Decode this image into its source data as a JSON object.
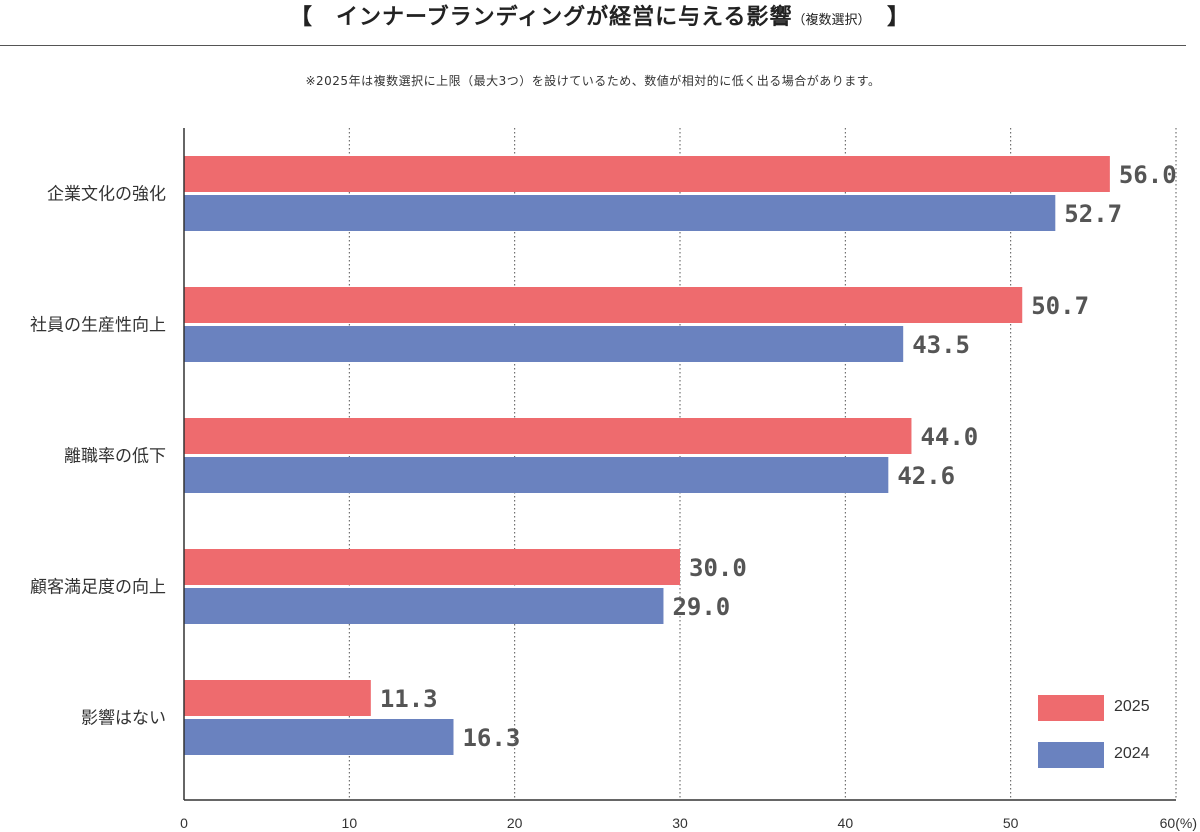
{
  "header": {
    "title_main": "【　インナーブランディングが経営に与える影響",
    "title_sub": "（複数選択）",
    "title_close": "　】",
    "note": "※2025年は複数選択に上限（最大3つ）を設けているため、数値が相対的に低く出る場合があります。"
  },
  "chart_data": {
    "type": "bar",
    "orientation": "horizontal",
    "title": "インナーブランディングが経営に与える影響（複数選択）",
    "categories": [
      "企業文化の強化",
      "社員の生産性向上",
      "離職率の低下",
      "顧客満足度の向上",
      "影響はない"
    ],
    "series": [
      {
        "name": "2025",
        "color": "#ee6b6e",
        "values": [
          56.0,
          50.7,
          44.0,
          30.0,
          11.3
        ]
      },
      {
        "name": "2024",
        "color": "#6a82bf",
        "values": [
          52.7,
          43.5,
          42.6,
          29.0,
          16.3
        ]
      }
    ],
    "x_ticks": [
      "0",
      "10",
      "20",
      "30",
      "40",
      "50",
      "60(%)"
    ],
    "xlim": [
      0,
      60
    ],
    "grid": "vertical dotted",
    "legend_position": "bottom-right"
  }
}
